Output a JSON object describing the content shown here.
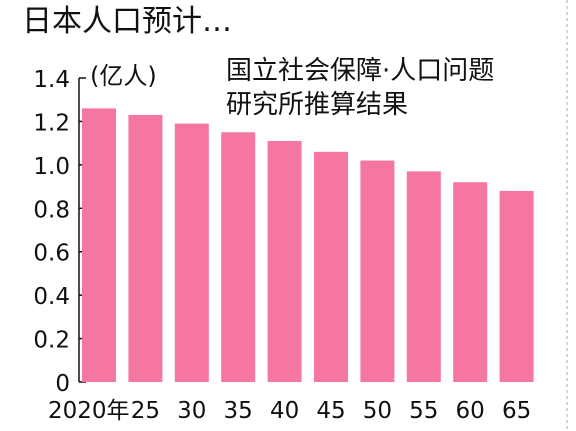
{
  "title": "日本人口预计…",
  "source_lines": [
    "国立社会保障·人口问题",
    "研究所推算结果"
  ],
  "colors": {
    "bar": "#f575a3",
    "axis": "#111111"
  },
  "chart_data": {
    "type": "bar",
    "title": "日本人口预计…",
    "unit_label": "(亿人)",
    "annotation": "国立社会保障·人口问题研究所推算结果",
    "categories": [
      "2020年",
      "25",
      "30",
      "35",
      "40",
      "45",
      "50",
      "55",
      "60",
      "65"
    ],
    "values": [
      1.26,
      1.23,
      1.19,
      1.15,
      1.11,
      1.06,
      1.02,
      0.97,
      0.92,
      0.88
    ],
    "ylim": [
      0,
      1.4
    ],
    "yticks": [
      "0",
      "0.2",
      "0.4",
      "0.6",
      "0.8",
      "1.0",
      "1.2",
      "1.4"
    ],
    "grid": false
  }
}
